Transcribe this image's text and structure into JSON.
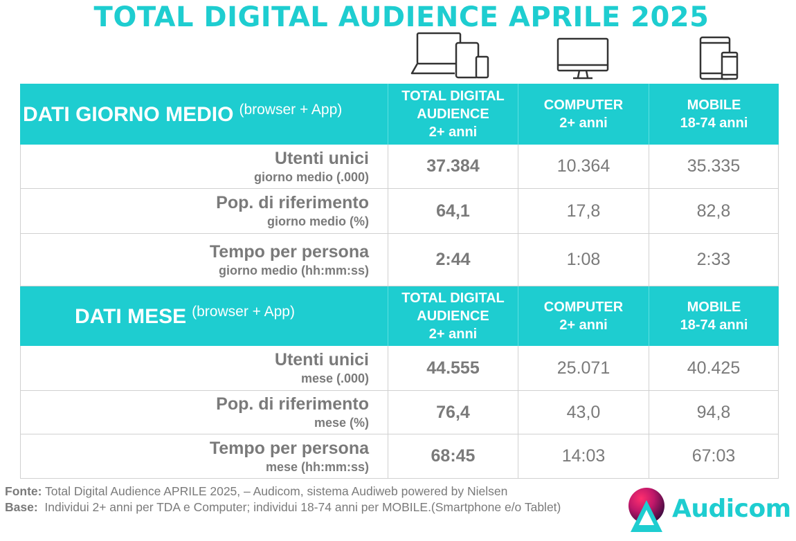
{
  "title": "TOTAL DIGITAL AUDIENCE APRILE 2025",
  "icons": [
    "devices-icon",
    "computer-icon",
    "mobile-icon"
  ],
  "colors": {
    "accent": "#1ecdd0",
    "text": "#7a7a7a",
    "header_text": "#ffffff"
  },
  "sections": [
    {
      "label": "DATI GIORNO MEDIO",
      "note": "(browser + App)",
      "columns": [
        {
          "line1": "TOTAL DIGITAL",
          "line2": "AUDIENCE",
          "line3": "2+ anni"
        },
        {
          "line1": "COMPUTER",
          "line2": "2+ anni"
        },
        {
          "line1": "MOBILE",
          "line2": "18-74 anni"
        }
      ],
      "rows": [
        {
          "title": "Utenti unici",
          "sub": "giorno medio (.000)",
          "values": [
            "37.384",
            "10.364",
            "35.335"
          ]
        },
        {
          "title": "Pop. di riferimento",
          "sub": "giorno medio (%)",
          "values": [
            "64,1",
            "17,8",
            "82,8"
          ]
        },
        {
          "title": "Tempo per persona",
          "sub": "giorno medio (hh:mm:ss)",
          "values": [
            "2:44",
            "1:08",
            "2:33"
          ]
        }
      ]
    },
    {
      "label": "DATI MESE",
      "note": "(browser + App)",
      "columns": [
        {
          "line1": "TOTAL DIGITAL",
          "line2": "AUDIENCE",
          "line3": "2+ anni"
        },
        {
          "line1": "COMPUTER",
          "line2": "2+ anni"
        },
        {
          "line1": "MOBILE",
          "line2": "18-74 anni"
        }
      ],
      "rows": [
        {
          "title": "Utenti unici",
          "sub": "mese (.000)",
          "values": [
            "44.555",
            "25.071",
            "40.425"
          ]
        },
        {
          "title": "Pop. di riferimento",
          "sub": "mese (%)",
          "values": [
            "76,4",
            "43,0",
            "94,8"
          ]
        },
        {
          "title": "Tempo per persona",
          "sub": "mese (hh:mm:ss)",
          "values": [
            "68:45",
            "14:03",
            "67:03"
          ]
        }
      ]
    }
  ],
  "footer": {
    "fonte_label": "Fonte:",
    "fonte_text": "Total Digital Audience APRILE 2025, – Audicom, sistema Audiweb powered by Nielsen",
    "base_label": "Base:",
    "base_text": "Individui 2+ anni per TDA e Computer; individui 18-74 anni per MOBILE.(Smartphone e/o Tablet)"
  },
  "logo": {
    "text": "Audicom"
  }
}
